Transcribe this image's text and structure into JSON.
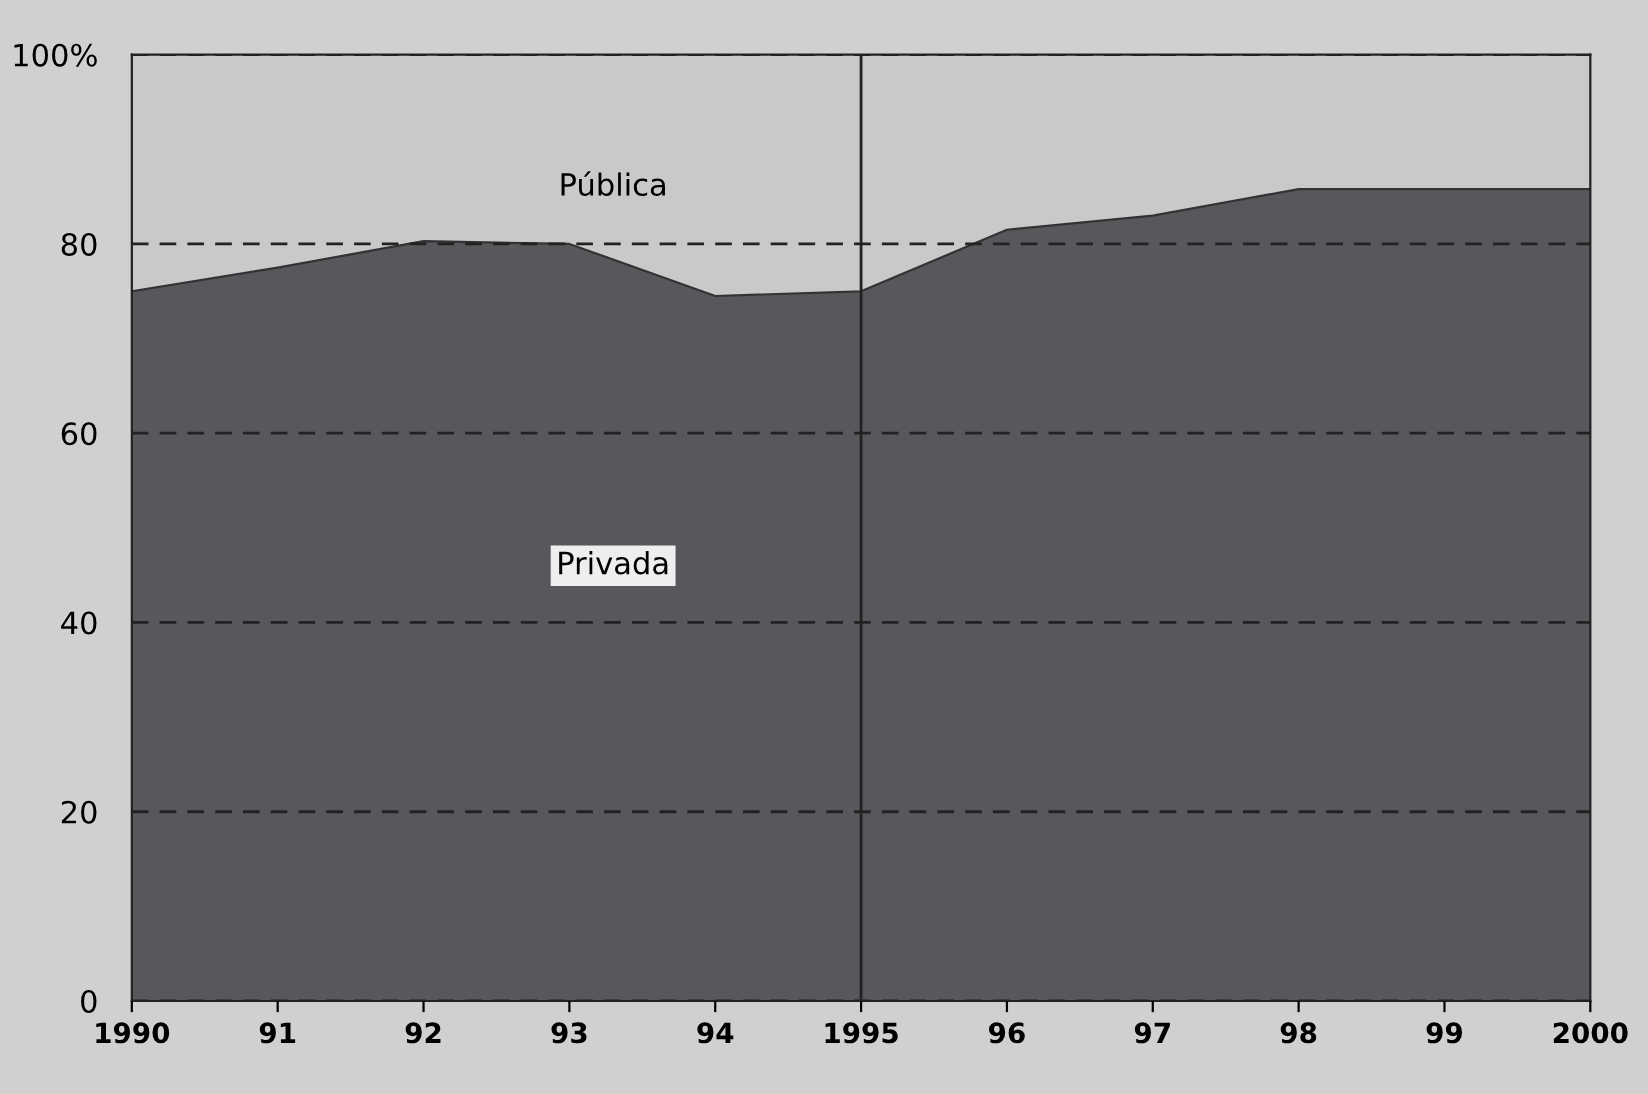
{
  "chart_data": {
    "type": "area",
    "stacked": true,
    "x": [
      1990,
      1991,
      1992,
      1993,
      1994,
      1995,
      1996,
      1997,
      1998,
      1999,
      2000
    ],
    "series": [
      {
        "name": "Privada",
        "color": "#58575c",
        "values": [
          75,
          77.5,
          80.3,
          80,
          74.5,
          75,
          81.5,
          83,
          85.8,
          85.8,
          85.8
        ]
      },
      {
        "name": "Pública",
        "color": "#c9c9c9",
        "values": [
          25,
          22.5,
          19.7,
          20,
          25.5,
          25,
          18.5,
          17,
          14.2,
          14.2,
          14.2
        ]
      }
    ],
    "xlim": [
      1990,
      2000
    ],
    "xticks": [
      1990,
      {
        "value": 1991,
        "label": "91"
      },
      {
        "value": 1992,
        "label": "92"
      },
      {
        "value": 1993,
        "label": "93"
      },
      {
        "value": 1994,
        "label": "94"
      },
      1995,
      {
        "value": 1996,
        "label": "96"
      },
      {
        "value": 1997,
        "label": "97"
      },
      {
        "value": 1998,
        "label": "98"
      },
      {
        "value": 1999,
        "label": "99"
      },
      2000
    ],
    "ylim": [
      0,
      100
    ],
    "yticks": [
      0,
      20,
      40,
      60,
      80,
      {
        "value": 100,
        "label": "100%"
      }
    ],
    "grid": "y",
    "ref_lines": [
      {
        "axis": "x",
        "value": 1995,
        "color": "#222222",
        "line_style": "solid"
      }
    ]
  }
}
